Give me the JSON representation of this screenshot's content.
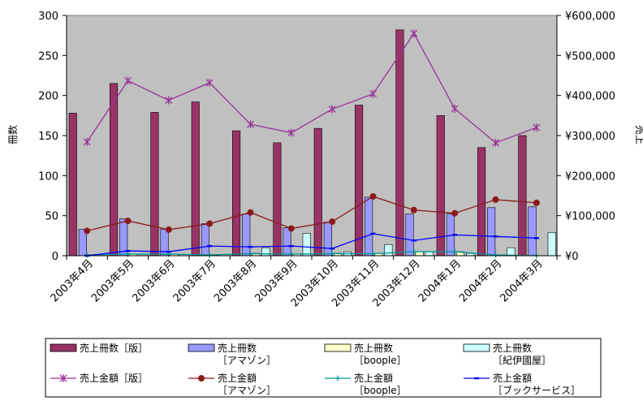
{
  "chart_data": {
    "type": "bar",
    "categories": [
      "2003年4月",
      "2003年5月",
      "2003年6月",
      "2003年7月",
      "2003年8月",
      "2003年9月",
      "2003年10月",
      "2003年11月",
      "2003年12月",
      "2004年1月",
      "2004年2月",
      "2004年3月"
    ],
    "ylabel_left": "冊数",
    "ylabel_right": "売上",
    "ylim_left": [
      0,
      300
    ],
    "ylim_right": [
      0,
      600000
    ],
    "yticks_left": [
      "0",
      "50",
      "100",
      "150",
      "200",
      "250",
      "300"
    ],
    "yticks_right": [
      "¥0",
      "¥100,000",
      "¥200,000",
      "¥300,000",
      "¥400,000",
      "¥500,000",
      "¥600,000"
    ],
    "grid": false,
    "legend_placement": "bottom",
    "bar_series": [
      {
        "name": "売上冊数［版］",
        "name_lines": [
          "売上冊数［版］"
        ],
        "color": "#993366",
        "values": [
          178,
          215,
          179,
          192,
          156,
          141,
          159,
          188,
          282,
          175,
          135,
          150
        ]
      },
      {
        "name": "売上冊数［アマゾン］",
        "name_lines": [
          "売上冊数",
          "［アマゾン］"
        ],
        "color": "#9999ff",
        "values": [
          33,
          46,
          33,
          40,
          52,
          35,
          42,
          73,
          52,
          52,
          60,
          61
        ]
      },
      {
        "name": "売上冊数［boople］",
        "name_lines": [
          "売上冊数",
          "［boople］"
        ],
        "color": "#ffffcc",
        "values": [
          1,
          2,
          2,
          1,
          3,
          2,
          3,
          3,
          5,
          5,
          1,
          0
        ]
      },
      {
        "name": "売上冊数［紀伊國屋］",
        "name_lines": [
          "売上冊数",
          "［紀伊國屋］"
        ],
        "color": "#ccffff",
        "values": [
          0,
          0,
          0,
          0,
          10,
          28,
          5,
          14,
          5,
          3,
          10,
          29
        ]
      }
    ],
    "line_series": [
      {
        "name": "売上金額［版］",
        "name_lines": [
          "売上金額［版］"
        ],
        "color": "#993399",
        "marker": "star",
        "values": [
          284000,
          437000,
          388000,
          432000,
          328000,
          307000,
          366000,
          404000,
          555000,
          367000,
          282000,
          320000
        ]
      },
      {
        "name": "売上金額［アマゾン］",
        "name_lines": [
          "売上金額",
          "［アマゾン］"
        ],
        "color": "#8b1a1a",
        "marker": "circle",
        "values": [
          62000,
          87000,
          65000,
          80000,
          108000,
          68000,
          85000,
          148000,
          114000,
          106000,
          140000,
          132000
        ]
      },
      {
        "name": "売上金額［boople］",
        "name_lines": [
          "売上金額",
          "［boople］"
        ],
        "color": "#009999",
        "marker": "plus",
        "values": [
          2000,
          4000,
          4000,
          2000,
          5000,
          4000,
          5000,
          5000,
          10000,
          10000,
          2000,
          0
        ]
      },
      {
        "name": "売上金額［ブックサービス］",
        "name_lines": [
          "売上金額",
          "［ブックサービス］"
        ],
        "color": "#0000ff",
        "marker": "dash",
        "values": [
          0,
          12000,
          10000,
          24000,
          22000,
          24000,
          18000,
          55000,
          38000,
          52000,
          48000,
          44000
        ]
      }
    ]
  }
}
